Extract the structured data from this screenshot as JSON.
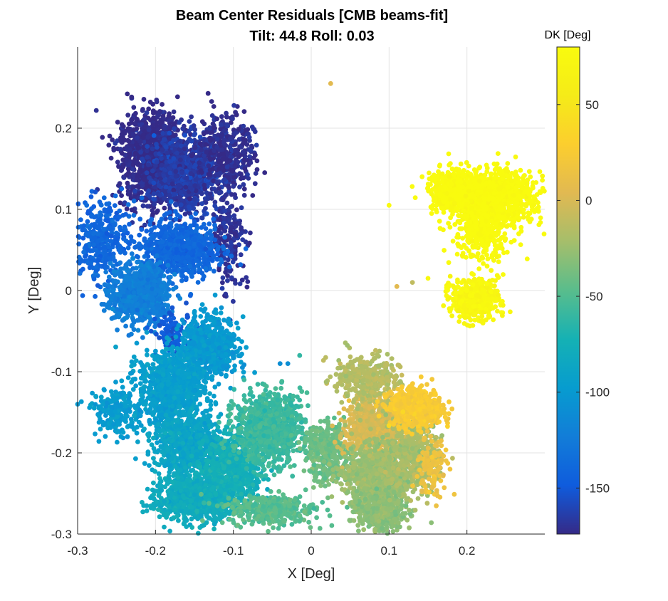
{
  "chart_data": {
    "type": "scatter",
    "title": "Beam Center Residuals [CMB beams-fit]",
    "subtitle": "Tilt: 44.8  Roll: 0.03",
    "xlabel": "X [Deg]",
    "ylabel": "Y [Deg]",
    "xlim": [
      -0.3,
      0.3
    ],
    "ylim": [
      -0.3,
      0.3
    ],
    "xticks": [
      -0.3,
      -0.2,
      -0.1,
      0,
      0.1,
      0.2
    ],
    "xtick_labels": [
      "-0.3",
      "-0.2",
      "-0.1",
      "0",
      "0.1",
      "0.2"
    ],
    "yticks": [
      -0.3,
      -0.2,
      -0.1,
      0,
      0.1,
      0.2
    ],
    "ytick_labels": [
      "-0.3",
      "-0.2",
      "-0.1",
      "0",
      "0.1",
      "0.2"
    ],
    "grid": true,
    "colorbar": {
      "label": "DK [Deg]",
      "range": [
        -174,
        80
      ],
      "ticks": [
        50,
        0,
        -50,
        -100,
        -150
      ],
      "tick_labels": [
        "50",
        "0",
        "-50",
        "-100",
        "-150"
      ],
      "colormap": "parula"
    },
    "clusters": [
      {
        "cx": -0.205,
        "cy": 0.165,
        "sx": 0.035,
        "sy": 0.045,
        "dk": -174,
        "n": 1100
      },
      {
        "cx": -0.16,
        "cy": 0.145,
        "sx": 0.04,
        "sy": 0.04,
        "dk": -165,
        "n": 800
      },
      {
        "cx": -0.11,
        "cy": 0.17,
        "sx": 0.03,
        "sy": 0.04,
        "dk": -172,
        "n": 350
      },
      {
        "cx": -0.105,
        "cy": 0.065,
        "sx": 0.02,
        "sy": 0.05,
        "dk": -170,
        "n": 180
      },
      {
        "cx": -0.17,
        "cy": 0.05,
        "sx": 0.04,
        "sy": 0.03,
        "dk": -140,
        "n": 700
      },
      {
        "cx": -0.27,
        "cy": 0.06,
        "sx": 0.03,
        "sy": 0.04,
        "dk": -140,
        "n": 350
      },
      {
        "cx": -0.22,
        "cy": -0.005,
        "sx": 0.03,
        "sy": 0.03,
        "dk": -122,
        "n": 800
      },
      {
        "cx": -0.175,
        "cy": -0.055,
        "sx": 0.02,
        "sy": 0.02,
        "dk": -150,
        "n": 120
      },
      {
        "cx": -0.13,
        "cy": -0.07,
        "sx": 0.03,
        "sy": 0.03,
        "dk": -100,
        "n": 600
      },
      {
        "cx": -0.18,
        "cy": -0.12,
        "sx": 0.035,
        "sy": 0.04,
        "dk": -95,
        "n": 900
      },
      {
        "cx": -0.25,
        "cy": -0.15,
        "sx": 0.025,
        "sy": 0.025,
        "dk": -98,
        "n": 200
      },
      {
        "cx": -0.16,
        "cy": -0.19,
        "sx": 0.035,
        "sy": 0.03,
        "dk": -88,
        "n": 700
      },
      {
        "cx": -0.15,
        "cy": -0.255,
        "sx": 0.04,
        "sy": 0.025,
        "dk": -80,
        "n": 800
      },
      {
        "cx": -0.1,
        "cy": -0.22,
        "sx": 0.03,
        "sy": 0.035,
        "dk": -75,
        "n": 600
      },
      {
        "cx": -0.055,
        "cy": -0.17,
        "sx": 0.035,
        "sy": 0.035,
        "dk": -58,
        "n": 1000
      },
      {
        "cx": -0.05,
        "cy": -0.27,
        "sx": 0.045,
        "sy": 0.015,
        "dk": -48,
        "n": 400
      },
      {
        "cx": 0.02,
        "cy": -0.2,
        "sx": 0.025,
        "sy": 0.03,
        "dk": -40,
        "n": 350
      },
      {
        "cx": 0.08,
        "cy": -0.17,
        "sx": 0.03,
        "sy": 0.03,
        "dk": 0,
        "n": 800
      },
      {
        "cx": 0.07,
        "cy": -0.11,
        "sx": 0.035,
        "sy": 0.025,
        "dk": -15,
        "n": 350
      },
      {
        "cx": 0.085,
        "cy": -0.23,
        "sx": 0.035,
        "sy": 0.03,
        "dk": -25,
        "n": 900
      },
      {
        "cx": 0.09,
        "cy": -0.275,
        "sx": 0.025,
        "sy": 0.02,
        "dk": -30,
        "n": 400
      },
      {
        "cx": 0.13,
        "cy": -0.2,
        "sx": 0.03,
        "sy": 0.04,
        "dk": -20,
        "n": 450
      },
      {
        "cx": 0.135,
        "cy": -0.145,
        "sx": 0.028,
        "sy": 0.018,
        "dk": 25,
        "n": 700
      },
      {
        "cx": 0.155,
        "cy": -0.22,
        "sx": 0.015,
        "sy": 0.03,
        "dk": 15,
        "n": 120
      },
      {
        "cx": 0.23,
        "cy": 0.115,
        "sx": 0.045,
        "sy": 0.025,
        "dk": 80,
        "n": 1300
      },
      {
        "cx": 0.185,
        "cy": 0.125,
        "sx": 0.03,
        "sy": 0.02,
        "dk": 80,
        "n": 300
      },
      {
        "cx": 0.22,
        "cy": 0.07,
        "sx": 0.03,
        "sy": 0.03,
        "dk": 80,
        "n": 300
      },
      {
        "cx": 0.21,
        "cy": -0.01,
        "sx": 0.025,
        "sy": 0.02,
        "dk": 74,
        "n": 500
      }
    ],
    "outliers": [
      {
        "x": 0.025,
        "y": 0.255,
        "dk": 5
      },
      {
        "x": 0.1,
        "y": 0.105,
        "dk": 78
      },
      {
        "x": 0.13,
        "y": 0.01,
        "dk": -10
      },
      {
        "x": 0.11,
        "y": 0.005,
        "dk": 5
      },
      {
        "x": 0.15,
        "y": 0.015,
        "dk": 75
      },
      {
        "x": -0.03,
        "y": -0.09,
        "dk": -110
      },
      {
        "x": -0.04,
        "y": -0.09,
        "dk": -110
      },
      {
        "x": -0.3,
        "y": -0.14,
        "dk": -100
      }
    ]
  }
}
